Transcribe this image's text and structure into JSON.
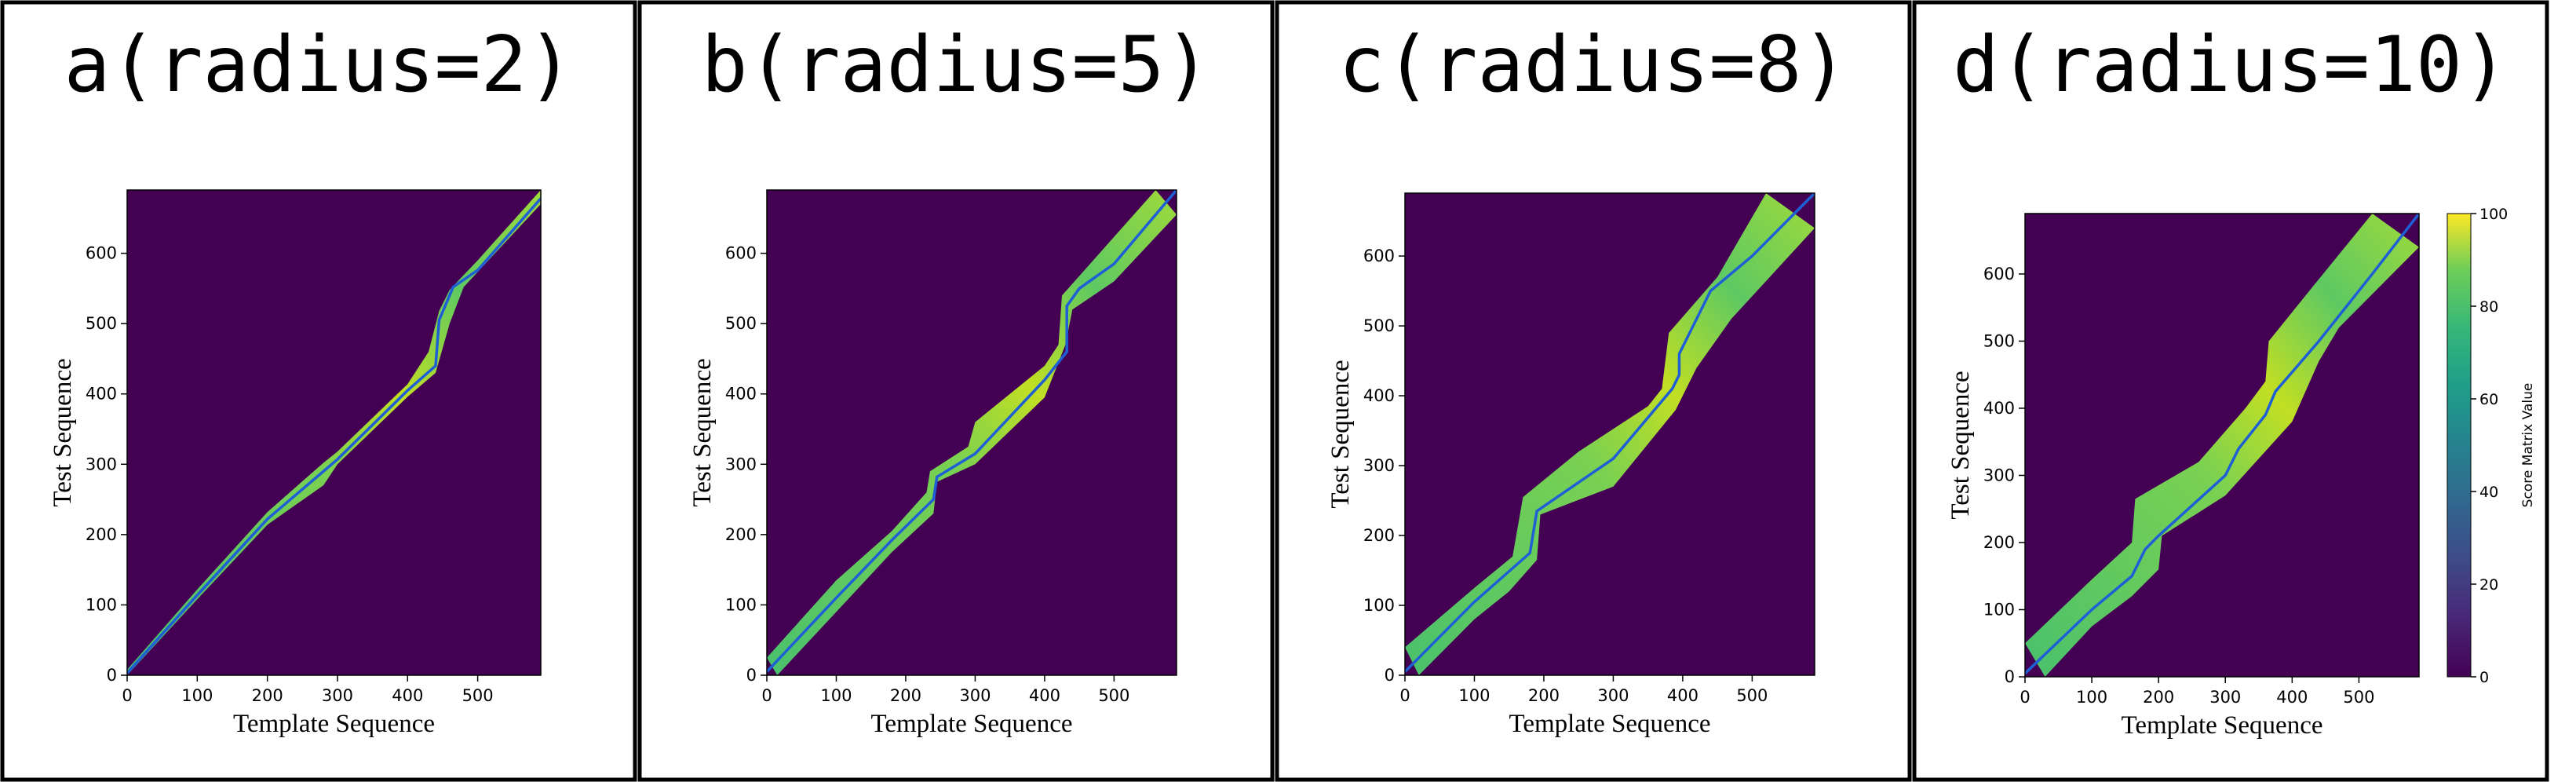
{
  "chart_data": [
    {
      "type": "heatmap",
      "title": "a(radius=2)",
      "xlabel": "Template Sequence",
      "ylabel": "Test Sequence",
      "xlim": [
        0,
        590
      ],
      "ylim": [
        0,
        690
      ],
      "xticks": [
        0,
        100,
        200,
        300,
        400,
        500
      ],
      "yticks": [
        0,
        100,
        200,
        300,
        400,
        500,
        600
      ],
      "colorbar": null,
      "band": {
        "upper": [
          [
            0,
            8
          ],
          [
            100,
            122
          ],
          [
            200,
            232
          ],
          [
            280,
            302
          ],
          [
            300,
            318
          ],
          [
            400,
            414
          ],
          [
            430,
            460
          ],
          [
            445,
            518
          ],
          [
            460,
            548
          ],
          [
            500,
            590
          ],
          [
            590,
            690
          ]
        ],
        "lower": [
          [
            0,
            0
          ],
          [
            100,
            108
          ],
          [
            200,
            214
          ],
          [
            280,
            270
          ],
          [
            300,
            300
          ],
          [
            400,
            396
          ],
          [
            440,
            430
          ],
          [
            460,
            500
          ],
          [
            480,
            552
          ],
          [
            590,
            670
          ]
        ]
      },
      "path": [
        [
          0,
          3
        ],
        [
          100,
          114
        ],
        [
          200,
          222
        ],
        [
          280,
          290
        ],
        [
          300,
          307
        ],
        [
          400,
          405
        ],
        [
          440,
          440
        ],
        [
          445,
          505
        ],
        [
          465,
          552
        ],
        [
          500,
          576
        ],
        [
          590,
          678
        ]
      ]
    },
    {
      "type": "heatmap",
      "title": "b(radius=5)",
      "xlabel": "Template Sequence",
      "ylabel": "Test Sequence",
      "xlim": [
        0,
        590
      ],
      "ylim": [
        0,
        690
      ],
      "xticks": [
        0,
        100,
        200,
        300,
        400,
        500
      ],
      "yticks": [
        0,
        100,
        200,
        300,
        400,
        500,
        600
      ],
      "colorbar": null,
      "band": {
        "upper": [
          [
            0,
            25
          ],
          [
            100,
            135
          ],
          [
            180,
            205
          ],
          [
            230,
            260
          ],
          [
            235,
            290
          ],
          [
            290,
            325
          ],
          [
            300,
            360
          ],
          [
            400,
            440
          ],
          [
            420,
            470
          ],
          [
            425,
            540
          ],
          [
            470,
            590
          ],
          [
            560,
            690
          ]
        ],
        "lower": [
          [
            15,
            0
          ],
          [
            100,
            90
          ],
          [
            180,
            175
          ],
          [
            240,
            230
          ],
          [
            245,
            275
          ],
          [
            300,
            300
          ],
          [
            400,
            395
          ],
          [
            430,
            470
          ],
          [
            440,
            520
          ],
          [
            500,
            560
          ],
          [
            590,
            655
          ]
        ]
      },
      "path": [
        [
          0,
          5
        ],
        [
          100,
          110
        ],
        [
          180,
          192
        ],
        [
          240,
          250
        ],
        [
          245,
          282
        ],
        [
          300,
          315
        ],
        [
          400,
          420
        ],
        [
          432,
          460
        ],
        [
          432,
          525
        ],
        [
          450,
          550
        ],
        [
          500,
          585
        ],
        [
          590,
          690
        ]
      ]
    },
    {
      "type": "heatmap",
      "title": "c(radius=8)",
      "xlabel": "Template Sequence",
      "ylabel": "Test Sequence",
      "xlim": [
        0,
        590
      ],
      "ylim": [
        0,
        690
      ],
      "xticks": [
        0,
        100,
        200,
        300,
        400,
        500
      ],
      "yticks": [
        0,
        100,
        200,
        300,
        400,
        500,
        600
      ],
      "colorbar": null,
      "band": {
        "upper": [
          [
            0,
            40
          ],
          [
            100,
            125
          ],
          [
            155,
            170
          ],
          [
            170,
            255
          ],
          [
            250,
            320
          ],
          [
            350,
            385
          ],
          [
            370,
            410
          ],
          [
            380,
            490
          ],
          [
            450,
            570
          ],
          [
            520,
            690
          ]
        ],
        "lower": [
          [
            20,
            0
          ],
          [
            100,
            80
          ],
          [
            150,
            120
          ],
          [
            190,
            165
          ],
          [
            195,
            230
          ],
          [
            300,
            270
          ],
          [
            390,
            380
          ],
          [
            420,
            440
          ],
          [
            470,
            510
          ],
          [
            590,
            640
          ]
        ]
      },
      "path": [
        [
          0,
          5
        ],
        [
          100,
          105
        ],
        [
          180,
          175
        ],
        [
          190,
          235
        ],
        [
          300,
          310
        ],
        [
          385,
          410
        ],
        [
          395,
          430
        ],
        [
          395,
          460
        ],
        [
          440,
          550
        ],
        [
          500,
          600
        ],
        [
          590,
          690
        ]
      ]
    },
    {
      "type": "heatmap",
      "title": "d(radius=10)",
      "xlabel": "Template Sequence",
      "ylabel": "Test Sequence",
      "xlim": [
        0,
        590
      ],
      "ylim": [
        0,
        690
      ],
      "xticks": [
        0,
        100,
        200,
        300,
        400,
        500
      ],
      "yticks": [
        0,
        100,
        200,
        300,
        400,
        500,
        600
      ],
      "colorbar": {
        "label": "Score Matrix Value",
        "ticks": [
          0,
          20,
          40,
          60,
          80,
          100
        ],
        "range": [
          0,
          100
        ]
      },
      "band": {
        "upper": [
          [
            0,
            50
          ],
          [
            100,
            145
          ],
          [
            160,
            200
          ],
          [
            165,
            265
          ],
          [
            260,
            320
          ],
          [
            330,
            400
          ],
          [
            360,
            440
          ],
          [
            365,
            500
          ],
          [
            430,
            580
          ],
          [
            520,
            690
          ]
        ],
        "lower": [
          [
            30,
            0
          ],
          [
            100,
            75
          ],
          [
            160,
            120
          ],
          [
            200,
            160
          ],
          [
            205,
            210
          ],
          [
            300,
            270
          ],
          [
            400,
            380
          ],
          [
            440,
            470
          ],
          [
            470,
            520
          ],
          [
            590,
            640
          ]
        ]
      },
      "path": [
        [
          0,
          5
        ],
        [
          100,
          100
        ],
        [
          160,
          150
        ],
        [
          180,
          190
        ],
        [
          200,
          210
        ],
        [
          300,
          300
        ],
        [
          320,
          340
        ],
        [
          360,
          390
        ],
        [
          375,
          425
        ],
        [
          440,
          500
        ],
        [
          520,
          600
        ],
        [
          590,
          690
        ]
      ]
    }
  ]
}
